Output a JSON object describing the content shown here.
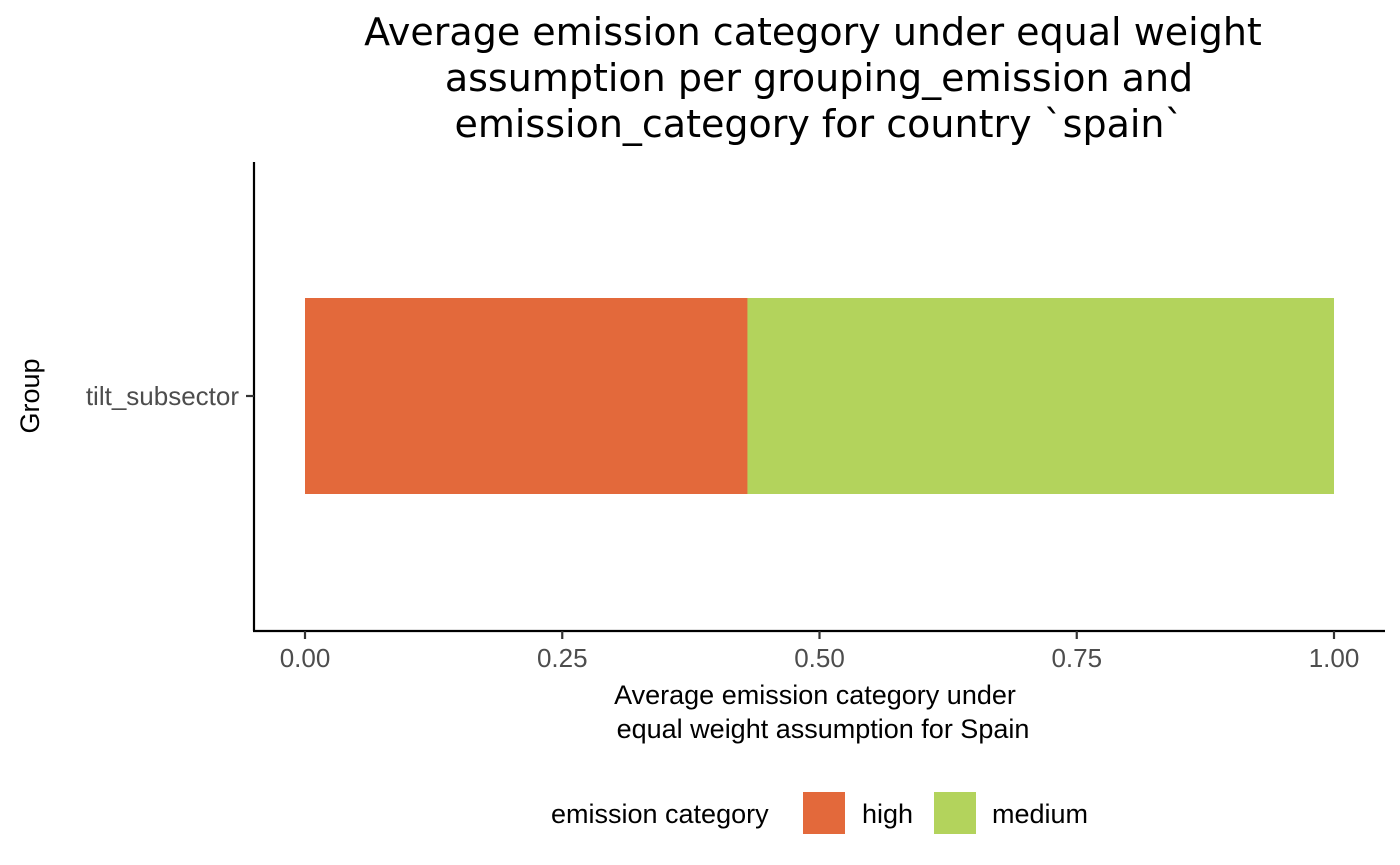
{
  "chart_data": {
    "type": "bar",
    "orientation": "horizontal",
    "stacked": true,
    "title_lines": [
      "Average emission category under equal weight",
      "assumption per grouping_emission and",
      "emission_category for country `spain`"
    ],
    "xlabel_lines": [
      "Average emission category under",
      "equal weight assumption for Spain"
    ],
    "ylabel": "Group",
    "categories": [
      "tilt_subsector"
    ],
    "series": [
      {
        "name": "high",
        "values": [
          0.43
        ],
        "color": "#e3693b"
      },
      {
        "name": "medium",
        "values": [
          0.57
        ],
        "color": "#b3d35c"
      }
    ],
    "xlim": [
      0,
      1
    ],
    "xticks": [
      "0.00",
      "0.25",
      "0.50",
      "0.75",
      "1.00"
    ],
    "grid": false,
    "legend": {
      "title": "emission category",
      "position": "bottom"
    }
  }
}
